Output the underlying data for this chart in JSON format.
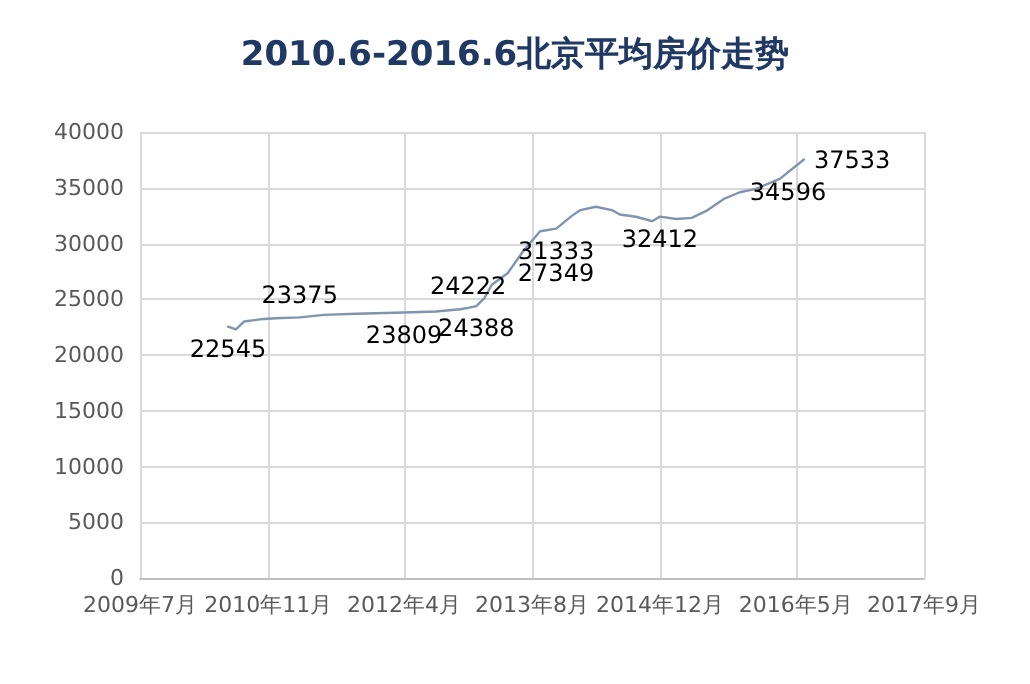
{
  "chart_data": {
    "type": "line",
    "title": "2010.6-2016.6北京平均房价走势",
    "x": [
      "2010-06",
      "2010-07",
      "2010-08",
      "2010-10",
      "2010-12",
      "2011-03",
      "2011-06",
      "2011-10",
      "2012-04",
      "2012-08",
      "2012-11",
      "2012-12",
      "2013-01",
      "2013-02",
      "2013-03",
      "2013-05",
      "2013-07",
      "2013-09",
      "2013-11",
      "2014-01",
      "2014-02",
      "2014-04",
      "2014-06",
      "2014-07",
      "2014-09",
      "2014-11",
      "2014-12",
      "2015-02",
      "2015-04",
      "2015-06",
      "2015-08",
      "2015-10",
      "2015-12",
      "2016-03",
      "2016-06"
    ],
    "series": [
      {
        "color": "#8094b0",
        "values": [
          22545,
          22300,
          23000,
          23200,
          23300,
          23375,
          23600,
          23700,
          23809,
          23900,
          24100,
          24222,
          24388,
          25100,
          26300,
          27349,
          29400,
          31100,
          31333,
          32500,
          33000,
          33300,
          33000,
          32600,
          32400,
          32000,
          32412,
          32200,
          32300,
          33000,
          34000,
          34596,
          34900,
          35800,
          37533
        ],
        "value_labels": [
          "22545",
          null,
          null,
          null,
          null,
          "23375",
          null,
          null,
          "23809",
          null,
          null,
          "24222",
          "24388",
          null,
          null,
          "27349",
          null,
          null,
          "31333",
          null,
          null,
          null,
          null,
          null,
          null,
          null,
          "32412",
          null,
          null,
          null,
          null,
          "34596",
          null,
          null,
          "37533"
        ]
      }
    ],
    "xlim": [
      "2009-07",
      "2017-09"
    ],
    "xticks": [
      {
        "value": "2009-07",
        "label": "2009年7月"
      },
      {
        "value": "2010-11",
        "label": "2010年11月"
      },
      {
        "value": "2012-04",
        "label": "2012年4月"
      },
      {
        "value": "2013-08",
        "label": "2013年8月"
      },
      {
        "value": "2014-12",
        "label": "2014年12月"
      },
      {
        "value": "2016-05",
        "label": "2016年5月"
      },
      {
        "value": "2017-09",
        "label": "2017年9月"
      }
    ],
    "ylim": [
      0,
      40000
    ],
    "yticks": [
      0,
      5000,
      10000,
      15000,
      20000,
      25000,
      30000,
      35000,
      40000
    ],
    "grid": true,
    "marker": "none",
    "line_style": "solid"
  }
}
